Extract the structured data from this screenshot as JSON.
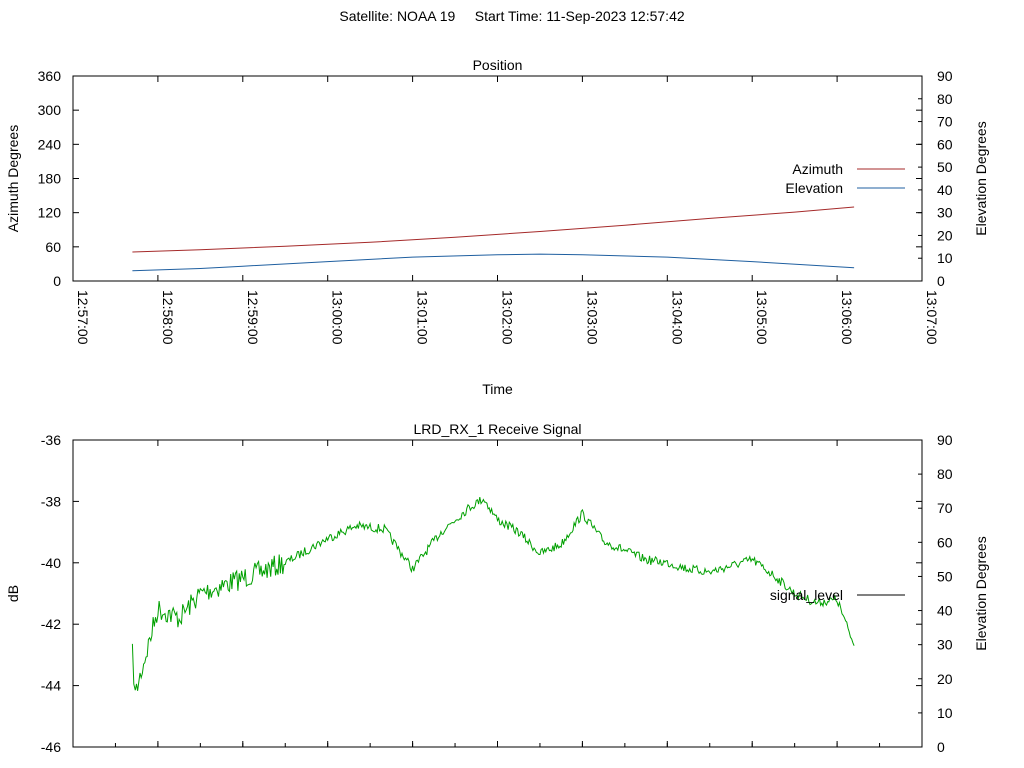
{
  "header": {
    "satellite": "Satellite: NOAA 19",
    "start_time": "Start Time: 11-Sep-2023 12:57:42"
  },
  "colors": {
    "azimuth": "#a52a2a",
    "elevation": "#1f5fa0",
    "signal": "#00a000",
    "axis": "#000000"
  },
  "chart_data": [
    {
      "type": "line",
      "title": "Position",
      "xlabel": "Time",
      "ylabel": "Azimuth Degrees",
      "y2label": "Elevation Degrees",
      "xlim": [
        "12:57:00",
        "13:07:00"
      ],
      "ylim": [
        0,
        360
      ],
      "y2lim": [
        0,
        90
      ],
      "x_ticks": [
        "12:57:00",
        "12:58:00",
        "12:59:00",
        "13:00:00",
        "13:01:00",
        "13:02:00",
        "13:03:00",
        "13:04:00",
        "13:05:00",
        "13:06:00",
        "13:07:00"
      ],
      "y_ticks": [
        "0",
        "60",
        "120",
        "180",
        "240",
        "300",
        "360"
      ],
      "y2_ticks": [
        "0",
        "10",
        "20",
        "30",
        "40",
        "50",
        "60",
        "70",
        "80",
        "90"
      ],
      "legend_position": "right",
      "grid": false,
      "series": [
        {
          "name": "Azimuth",
          "axis": "y",
          "x": [
            "12:57:42",
            "12:58:30",
            "12:59:30",
            "13:00:30",
            "13:01:30",
            "13:02:30",
            "13:03:30",
            "13:04:30",
            "13:05:30",
            "13:06:12"
          ],
          "values": [
            51,
            55,
            61,
            68,
            77,
            87,
            98,
            110,
            121,
            130
          ]
        },
        {
          "name": "Elevation",
          "axis": "y2",
          "x": [
            "12:57:42",
            "12:58:30",
            "12:59:00",
            "13:00:00",
            "13:01:00",
            "13:02:00",
            "13:02:30",
            "13:03:00",
            "13:04:00",
            "13:05:00",
            "13:06:12"
          ],
          "values": [
            4.5,
            5.5,
            6.5,
            8.5,
            10.5,
            11.5,
            11.8,
            11.5,
            10.5,
            8.5,
            5.8
          ]
        }
      ]
    },
    {
      "type": "line",
      "title": "LRD_RX_1 Receive Signal",
      "ylabel": "dB",
      "y2label": "Elevation Degrees",
      "xlim": [
        "12:57:00",
        "13:07:00"
      ],
      "ylim": [
        -46,
        -36
      ],
      "y2lim": [
        0,
        90
      ],
      "y_ticks": [
        "-36",
        "-38",
        "-40",
        "-42",
        "-44",
        "-46"
      ],
      "y2_ticks": [
        "0",
        "10",
        "20",
        "30",
        "40",
        "50",
        "60",
        "70",
        "80",
        "90"
      ],
      "legend_position": "right",
      "grid": false,
      "series": [
        {
          "name": "signal_level",
          "axis": "y",
          "x": [
            "12:57:42",
            "12:57:44",
            "12:58:00",
            "12:58:15",
            "12:58:30",
            "12:59:00",
            "12:59:30",
            "13:00:00",
            "13:00:20",
            "13:00:40",
            "13:01:00",
            "13:01:20",
            "13:01:30",
            "13:01:40",
            "13:01:50",
            "13:02:00",
            "13:02:15",
            "13:02:30",
            "13:02:45",
            "13:03:00",
            "13:03:15",
            "13:03:30",
            "13:03:45",
            "13:04:00",
            "13:04:15",
            "13:04:30",
            "13:04:45",
            "13:05:00",
            "13:05:15",
            "13:05:30",
            "13:05:45",
            "13:06:00",
            "13:06:12"
          ],
          "values": [
            -43.0,
            -44.3,
            -41.5,
            -41.8,
            -41.0,
            -40.5,
            -40.0,
            -39.2,
            -38.8,
            -38.9,
            -40.2,
            -39.0,
            -38.6,
            -38.2,
            -37.9,
            -38.6,
            -39.0,
            -39.7,
            -39.4,
            -38.4,
            -39.3,
            -39.6,
            -39.9,
            -40.0,
            -40.2,
            -40.3,
            -40.1,
            -39.9,
            -40.4,
            -41.0,
            -41.3,
            -41.2,
            -42.7
          ]
        }
      ]
    }
  ]
}
